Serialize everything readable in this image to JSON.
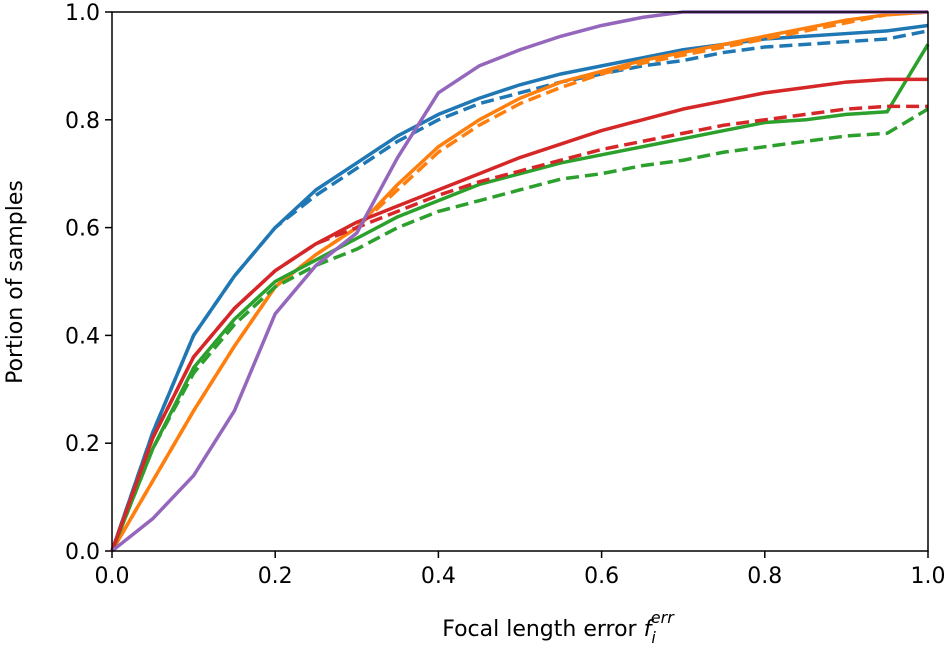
{
  "chart_data": {
    "type": "line",
    "xlabel": {
      "text": "Focal length error",
      "symbol": "f",
      "sub": "i",
      "sup": "err"
    },
    "ylabel": "Portion of samples",
    "x": [
      0,
      0.05,
      0.1,
      0.15,
      0.2,
      0.25,
      0.3,
      0.35,
      0.4,
      0.45,
      0.5,
      0.55,
      0.6,
      0.65,
      0.7,
      0.75,
      0.8,
      0.85,
      0.9,
      0.95,
      1.0
    ],
    "series": [
      {
        "color": "#1f77b4",
        "dashed": false,
        "values": [
          0,
          0.22,
          0.4,
          0.51,
          0.6,
          0.67,
          0.72,
          0.77,
          0.81,
          0.84,
          0.865,
          0.885,
          0.9,
          0.915,
          0.93,
          0.94,
          0.95,
          0.955,
          0.96,
          0.965,
          0.975
        ]
      },
      {
        "color": "#1f77b4",
        "dashed": true,
        "values": [
          0,
          0.22,
          0.4,
          0.51,
          0.6,
          0.66,
          0.71,
          0.76,
          0.8,
          0.83,
          0.85,
          0.87,
          0.885,
          0.9,
          0.91,
          0.925,
          0.935,
          0.94,
          0.945,
          0.95,
          0.965
        ]
      },
      {
        "color": "#ff7f0e",
        "dashed": false,
        "values": [
          0,
          0.13,
          0.26,
          0.38,
          0.49,
          0.55,
          0.6,
          0.68,
          0.75,
          0.8,
          0.84,
          0.87,
          0.89,
          0.91,
          0.925,
          0.94,
          0.955,
          0.97,
          0.985,
          0.995,
          1.0
        ]
      },
      {
        "color": "#ff7f0e",
        "dashed": true,
        "values": [
          0,
          0.13,
          0.26,
          0.38,
          0.49,
          0.55,
          0.6,
          0.67,
          0.74,
          0.79,
          0.83,
          0.86,
          0.885,
          0.905,
          0.92,
          0.935,
          0.95,
          0.965,
          0.98,
          0.995,
          1.0
        ]
      },
      {
        "color": "#2ca02c",
        "dashed": false,
        "values": [
          0,
          0.19,
          0.34,
          0.43,
          0.5,
          0.54,
          0.58,
          0.62,
          0.65,
          0.68,
          0.7,
          0.72,
          0.735,
          0.75,
          0.765,
          0.78,
          0.795,
          0.8,
          0.81,
          0.815,
          0.94
        ]
      },
      {
        "color": "#2ca02c",
        "dashed": true,
        "values": [
          0,
          0.19,
          0.33,
          0.42,
          0.49,
          0.53,
          0.56,
          0.6,
          0.63,
          0.65,
          0.67,
          0.69,
          0.7,
          0.715,
          0.725,
          0.74,
          0.75,
          0.76,
          0.77,
          0.775,
          0.82
        ]
      },
      {
        "color": "#d62728",
        "dashed": false,
        "values": [
          0,
          0.21,
          0.36,
          0.45,
          0.52,
          0.57,
          0.61,
          0.64,
          0.67,
          0.7,
          0.73,
          0.755,
          0.78,
          0.8,
          0.82,
          0.835,
          0.85,
          0.86,
          0.87,
          0.875,
          0.875
        ]
      },
      {
        "color": "#d62728",
        "dashed": true,
        "values": [
          0,
          0.21,
          0.36,
          0.45,
          0.52,
          0.57,
          0.6,
          0.63,
          0.66,
          0.685,
          0.705,
          0.725,
          0.745,
          0.76,
          0.775,
          0.79,
          0.8,
          0.81,
          0.82,
          0.825,
          0.825
        ]
      },
      {
        "color": "#9467bd",
        "dashed": false,
        "values": [
          0,
          0.06,
          0.14,
          0.26,
          0.44,
          0.53,
          0.59,
          0.73,
          0.85,
          0.9,
          0.93,
          0.955,
          0.975,
          0.99,
          1.0,
          1.0,
          1.0,
          1.0,
          1.0,
          1.0,
          1.0
        ]
      }
    ],
    "xlim": [
      0,
      1.0
    ],
    "ylim": [
      0,
      1.0
    ],
    "xticks": [
      {
        "value": 0,
        "label": "0.0"
      },
      0.2,
      0.4,
      0.6,
      0.8,
      {
        "value": 1,
        "label": "1.0"
      }
    ],
    "yticks": [
      {
        "value": 0,
        "label": "0.0"
      },
      0.2,
      0.4,
      0.6,
      0.8,
      {
        "value": 1,
        "label": "1.0"
      }
    ]
  }
}
